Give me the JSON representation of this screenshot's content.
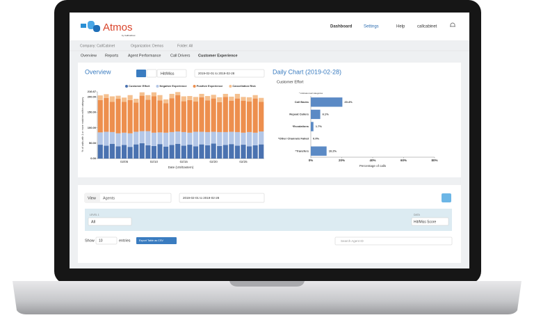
{
  "header": {
    "logo": "Atmos",
    "logo_sub": "by CallCabinet",
    "nav": [
      "Dashboard",
      "Settings",
      "Help",
      "callcabinet"
    ]
  },
  "breadcrumb": [
    "Company: CallCabinet",
    "Organization: Demos",
    "Folder: All"
  ],
  "tabs": [
    "Overview",
    "Reports",
    "Agent Performance",
    "Call Drivers",
    "Customer Experience"
  ],
  "overview": {
    "title": "Overview",
    "metric": "Hit/Miss",
    "date_range": "2019-02-01 to 2019-02-28"
  },
  "chart_data": [
    {
      "type": "bar",
      "stacked": true,
      "ylabel": "% of calls with 1 or more matches within category",
      "xlabel": "Date (US/Eastern)",
      "categories": [
        null,
        null,
        null,
        null,
        "02/05",
        null,
        null,
        null,
        null,
        "02/10",
        null,
        null,
        null,
        null,
        "02/15",
        null,
        null,
        null,
        null,
        "02/20",
        null,
        null,
        null,
        null,
        "02/25",
        null,
        null,
        null
      ],
      "series": [
        {
          "name": "Customer Effort",
          "color": "#4a72b0",
          "values": [
            45,
            42,
            48,
            40,
            44,
            38,
            46,
            50,
            43,
            41,
            47,
            39,
            44,
            48,
            42,
            45,
            40,
            46,
            43,
            49,
            41,
            44,
            47,
            42,
            45,
            40,
            43,
            46
          ]
        },
        {
          "name": "Negative Experience",
          "color": "#b4c7e7",
          "values": [
            40,
            45,
            38,
            42,
            40,
            44,
            41,
            39,
            46,
            43,
            38,
            45,
            42,
            40,
            44,
            39,
            47,
            41,
            43,
            38,
            45,
            42,
            40,
            44,
            39,
            46,
            41,
            42
          ]
        },
        {
          "name": "Positive Experience",
          "color": "#ed8f4e",
          "values": [
            105,
            110,
            98,
            112,
            100,
            108,
            95,
            115,
            102,
            118,
            104,
            96,
            110,
            118,
            100,
            106,
            98,
            112,
            103,
            108,
            97,
            114,
            101,
            109,
            104,
            99,
            111,
            96
          ]
        },
        {
          "name": "Cancellation Risk",
          "color": "#f5c08f",
          "values": [
            15,
            12,
            18,
            10,
            14,
            16,
            12,
            11,
            15,
            13,
            17,
            12,
            14,
            10,
            16,
            13,
            15,
            11,
            14,
            12,
            16,
            10,
            13,
            15,
            12,
            14,
            11,
            13
          ]
        }
      ],
      "ylim": [
        0,
        216.67
      ],
      "yticks": [
        {
          "value": 0,
          "label": "0.00"
        },
        {
          "value": 50,
          "label": "50.00"
        },
        {
          "value": 100,
          "label": "100.00"
        },
        {
          "value": 150,
          "label": "150.00"
        },
        {
          "value": 200,
          "label": "200.00"
        },
        216.67
      ],
      "legend": "top"
    },
    {
      "type": "barh",
      "title": "Daily Chart (2019-02-28)",
      "subtitle": "Customer Effort",
      "note": "* indicates leaf categories",
      "categories": [
        "Call Backs",
        "Repeat Callers",
        "*Escalations",
        "*Other Channels Failed",
        "*Transfers"
      ],
      "values": [
        20.4,
        6.1,
        1.7,
        0.0,
        10.2
      ],
      "value_labels": [
        "20.4%",
        "6.1%",
        "1.7%",
        "0.0%",
        "10.2%"
      ],
      "color": "#5b8ac5",
      "xlabel": "Percentage of calls",
      "xlim": [
        0,
        80
      ],
      "xticks": [
        {
          "value": 0,
          "label": "0%"
        },
        {
          "value": 20,
          "label": "20%"
        },
        {
          "value": 40,
          "label": "40%"
        },
        {
          "value": 60,
          "label": "60%"
        },
        {
          "value": 80,
          "label": "80%"
        }
      ]
    }
  ],
  "table_controls": {
    "view_label": "View",
    "view_value": "Agents",
    "date_range": "2019-02-01 to 2019-02-28",
    "level_label": "LEVEL 1",
    "level_value": "All",
    "data_label": "DATA",
    "data_value": "Hit/Miss Score",
    "show": "Show",
    "entries_count": "10",
    "entries": "entries",
    "export": "Export Table as CSV",
    "search": "Search Agent ID"
  }
}
